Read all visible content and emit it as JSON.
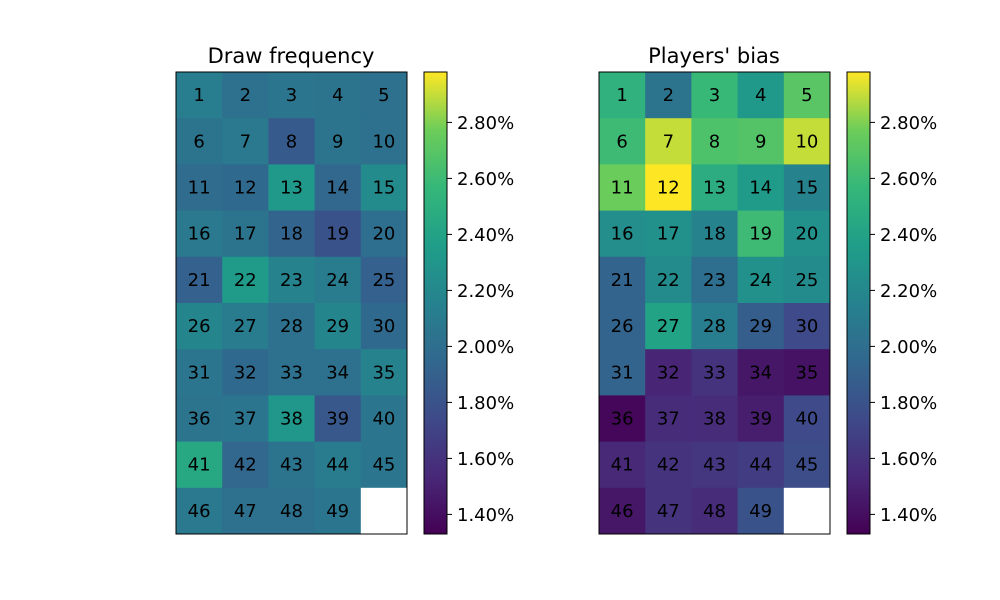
{
  "chart_data": [
    {
      "type": "heatmap",
      "title": "Draw frequency",
      "rows": 10,
      "cols": 5,
      "labels": [
        [
          1,
          2,
          3,
          4,
          5
        ],
        [
          6,
          7,
          8,
          9,
          10
        ],
        [
          11,
          12,
          13,
          14,
          15
        ],
        [
          16,
          17,
          18,
          19,
          20
        ],
        [
          21,
          22,
          23,
          24,
          25
        ],
        [
          26,
          27,
          28,
          29,
          30
        ],
        [
          31,
          32,
          33,
          34,
          35
        ],
        [
          36,
          37,
          38,
          39,
          40
        ],
        [
          41,
          42,
          43,
          44,
          45
        ],
        [
          46,
          47,
          48,
          49,
          null
        ]
      ],
      "values": [
        [
          2.12,
          2.02,
          2.06,
          2.04,
          2.02
        ],
        [
          2.04,
          2.08,
          1.85,
          2.04,
          2.02
        ],
        [
          1.98,
          1.96,
          2.32,
          1.94,
          2.22
        ],
        [
          2.08,
          2.04,
          1.92,
          1.8,
          2.0
        ],
        [
          1.9,
          2.34,
          2.16,
          2.1,
          1.9
        ],
        [
          2.18,
          2.1,
          2.02,
          2.18,
          1.96
        ],
        [
          2.06,
          1.96,
          2.02,
          2.02,
          2.16
        ],
        [
          2.04,
          2.06,
          2.3,
          1.84,
          2.06
        ],
        [
          2.44,
          1.94,
          2.04,
          2.1,
          2.06
        ],
        [
          2.08,
          2.02,
          2.02,
          2.06,
          null
        ]
      ],
      "colorbar": {
        "min": 1.33,
        "max": 2.98,
        "ticks": [
          1.4,
          1.6,
          1.8,
          2.0,
          2.2,
          2.4,
          2.6,
          2.8
        ],
        "tick_labels": [
          "1.40%",
          "1.60%",
          "1.80%",
          "2.00%",
          "2.20%",
          "2.40%",
          "2.60%",
          "2.80%"
        ]
      }
    },
    {
      "type": "heatmap",
      "title": "Players' bias",
      "rows": 10,
      "cols": 5,
      "labels": [
        [
          1,
          2,
          3,
          4,
          5
        ],
        [
          6,
          7,
          8,
          9,
          10
        ],
        [
          11,
          12,
          13,
          14,
          15
        ],
        [
          16,
          17,
          18,
          19,
          20
        ],
        [
          21,
          22,
          23,
          24,
          25
        ],
        [
          26,
          27,
          28,
          29,
          30
        ],
        [
          31,
          32,
          33,
          34,
          35
        ],
        [
          36,
          37,
          38,
          39,
          40
        ],
        [
          41,
          42,
          43,
          44,
          45
        ],
        [
          46,
          47,
          48,
          49,
          null
        ]
      ],
      "values": [
        [
          2.52,
          2.04,
          2.58,
          2.32,
          2.7
        ],
        [
          2.6,
          2.9,
          2.66,
          2.68,
          2.9
        ],
        [
          2.76,
          2.98,
          2.48,
          2.34,
          2.16
        ],
        [
          2.24,
          2.26,
          2.16,
          2.6,
          2.26
        ],
        [
          1.92,
          2.22,
          2.0,
          2.26,
          2.22
        ],
        [
          1.92,
          2.4,
          2.12,
          1.88,
          1.74
        ],
        [
          1.92,
          1.52,
          1.6,
          1.44,
          1.42
        ],
        [
          1.36,
          1.56,
          1.56,
          1.48,
          1.74
        ],
        [
          1.54,
          1.6,
          1.62,
          1.66,
          1.76
        ],
        [
          1.44,
          1.6,
          1.56,
          1.8,
          null
        ]
      ],
      "colorbar": {
        "min": 1.33,
        "max": 2.98,
        "ticks": [
          1.4,
          1.6,
          1.8,
          2.0,
          2.2,
          2.4,
          2.6,
          2.8
        ],
        "tick_labels": [
          "1.40%",
          "1.60%",
          "1.80%",
          "2.00%",
          "2.20%",
          "2.40%",
          "2.60%",
          "2.80%"
        ]
      }
    }
  ]
}
